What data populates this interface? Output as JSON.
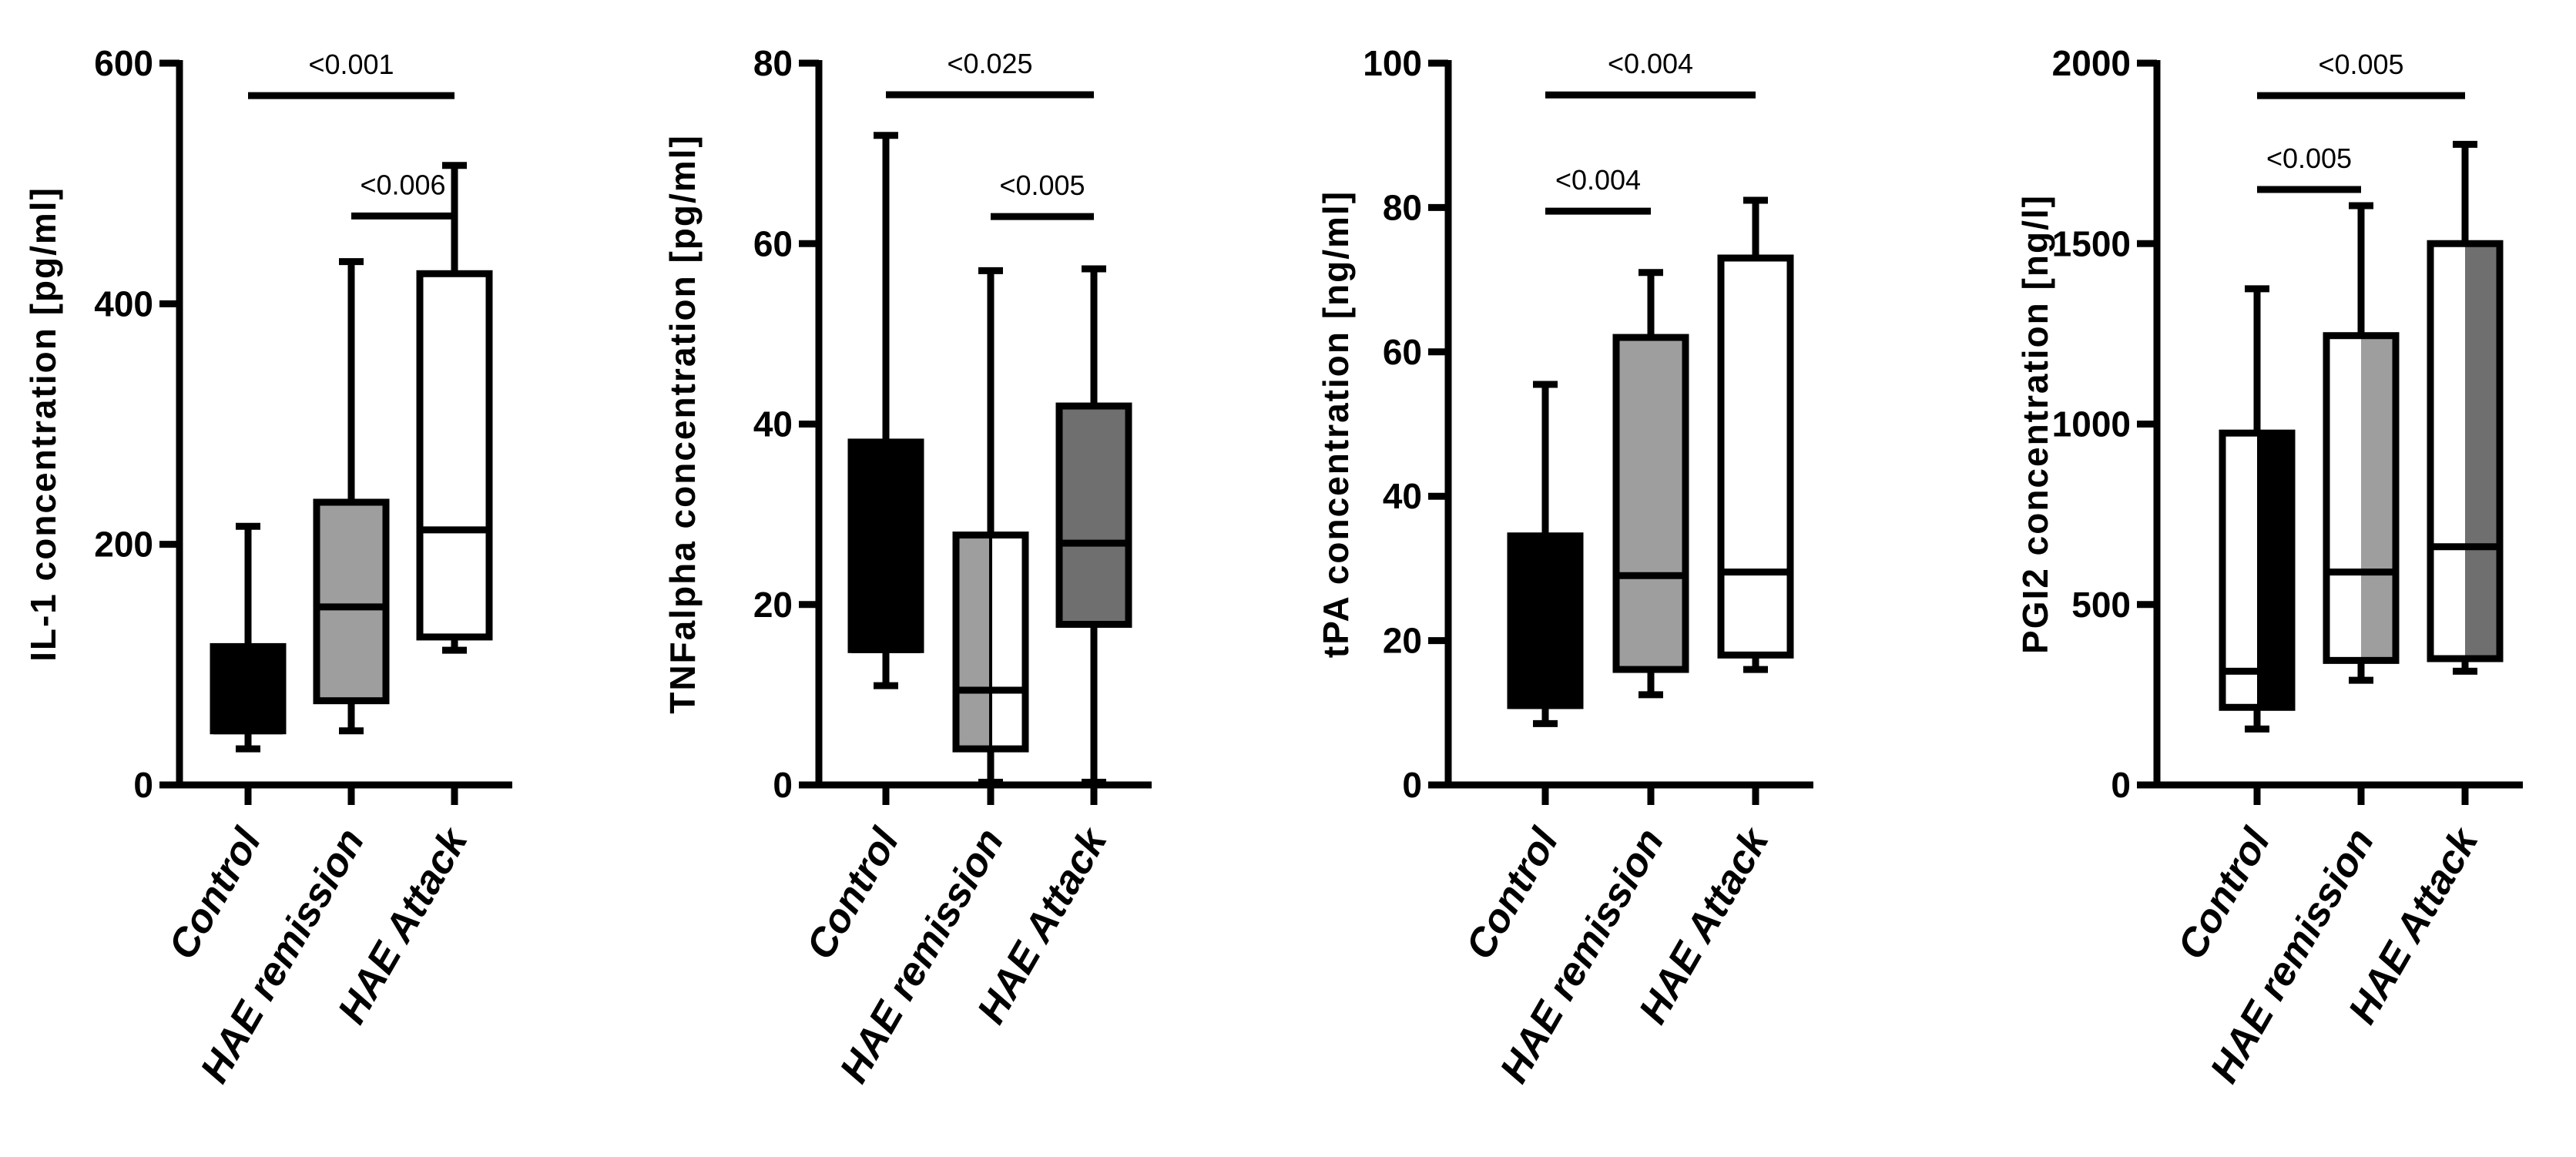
{
  "figure_title": "",
  "colors": {
    "black": "#000000",
    "gray": "#9e9e9e",
    "dark_gray": "#6f6f6f",
    "white": "#ffffff"
  },
  "chart_data": [
    {
      "type": "box",
      "title": "",
      "xlabel": "",
      "ylabel": "IL-1 concentration [pg/ml]",
      "ylim": [
        0,
        600
      ],
      "yticks": [
        0,
        200,
        400,
        600
      ],
      "categories": [
        "Control",
        "HAE remission",
        "HAE Attack"
      ],
      "boxes": [
        {
          "category": "Control",
          "min": 30,
          "q1": 45,
          "median": 45,
          "q3": 115,
          "max": 215,
          "fill": "black"
        },
        {
          "category": "HAE remission",
          "min": 45,
          "q1": 70,
          "median": 148,
          "q3": 235,
          "max": 435,
          "fill": "gray"
        },
        {
          "category": "HAE Attack",
          "min": 112,
          "q1": 123,
          "median": 212,
          "q3": 425,
          "max": 515,
          "fill": "white"
        }
      ],
      "comparisons": [
        {
          "from": "Control",
          "to": "HAE Attack",
          "label": "<0.001",
          "y": 573
        },
        {
          "from": "HAE remission",
          "to": "HAE Attack",
          "label": "<0.006",
          "y": 473
        }
      ]
    },
    {
      "type": "box",
      "title": "",
      "xlabel": "",
      "ylabel": "TNFalpha concentration [pg/ml]",
      "ylim": [
        0,
        80
      ],
      "yticks": [
        0,
        20,
        40,
        60,
        80
      ],
      "categories": [
        "Control",
        "HAE remission",
        "HAE Attack"
      ],
      "boxes": [
        {
          "category": "Control",
          "min": 11,
          "q1": 15,
          "median": 15,
          "q3": 38,
          "max": 72,
          "fill": "black"
        },
        {
          "category": "HAE remission",
          "min": 0.3,
          "q1": 4,
          "median": 10.5,
          "q3": 27.7,
          "max": 57,
          "fill": "split"
        },
        {
          "category": "HAE Attack",
          "min": 0.3,
          "q1": 17.8,
          "median": 26.8,
          "q3": 42,
          "max": 57.2,
          "fill": "dark_gray"
        }
      ],
      "comparisons": [
        {
          "from": "Control",
          "to": "HAE Attack",
          "label": "<0.025",
          "y": 76.5
        },
        {
          "from": "HAE remission",
          "to": "HAE Attack",
          "label": "<0.005",
          "y": 63
        }
      ]
    },
    {
      "type": "box",
      "title": "",
      "xlabel": "",
      "ylabel": "tPA concentration [ng/ml]",
      "ylim": [
        0,
        100
      ],
      "yticks": [
        0,
        20,
        40,
        60,
        80,
        100
      ],
      "categories": [
        "Control",
        "HAE remission",
        "HAE Attack"
      ],
      "boxes": [
        {
          "category": "Control",
          "min": 8.5,
          "q1": 11,
          "median": 11,
          "q3": 34.5,
          "max": 55.5,
          "fill": "black"
        },
        {
          "category": "HAE remission",
          "min": 12.5,
          "q1": 16,
          "median": 29,
          "q3": 62,
          "max": 71,
          "fill": "gray"
        },
        {
          "category": "HAE Attack",
          "min": 16,
          "q1": 18,
          "median": 29.5,
          "q3": 73,
          "max": 81,
          "fill": "white"
        }
      ],
      "comparisons": [
        {
          "from": "Control",
          "to": "HAE Attack",
          "label": "<0.004",
          "y": 95.6
        },
        {
          "from": "Control",
          "to": "HAE remission",
          "label": "<0.004",
          "y": 79.5
        }
      ]
    },
    {
      "type": "box",
      "title": "",
      "xlabel": "",
      "ylabel": "PGI2 concentration [ng/l]",
      "ylim": [
        0,
        2000
      ],
      "yticks": [
        0,
        500,
        1000,
        1500,
        2000
      ],
      "categories": [
        "Control",
        "HAE remission",
        "HAE Attack"
      ],
      "boxes": [
        {
          "category": "Control",
          "min": 155,
          "q1": 215,
          "median": 315,
          "q3": 975,
          "max": 1375,
          "fill": "split_white_black"
        },
        {
          "category": "HAE remission",
          "min": 290,
          "q1": 345,
          "median": 590,
          "q3": 1245,
          "max": 1605,
          "fill": "split_white_gray"
        },
        {
          "category": "HAE Attack",
          "min": 315,
          "q1": 350,
          "median": 660,
          "q3": 1500,
          "max": 1775,
          "fill": "split_white_dark"
        }
      ],
      "comparisons": [
        {
          "from": "Control",
          "to": "HAE Attack",
          "label": "<0.005",
          "y": 1910
        },
        {
          "from": "Control",
          "to": "HAE remission",
          "label": "<0.005",
          "y": 1650
        }
      ]
    }
  ]
}
